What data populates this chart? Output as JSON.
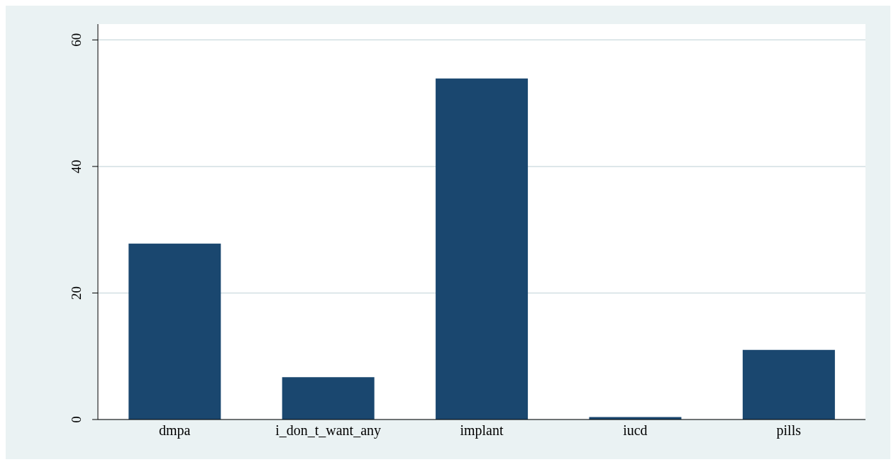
{
  "chart_data": {
    "type": "bar",
    "categories": [
      "dmpa",
      "i_don_t_want_any",
      "implant",
      "iucd",
      "pills"
    ],
    "values": [
      27.8,
      6.7,
      53.9,
      0.4,
      11.0
    ],
    "color": "#1a476f",
    "ylim": [
      0,
      62.5
    ],
    "yticks": [
      0,
      20,
      40,
      60
    ],
    "grid": "y"
  }
}
